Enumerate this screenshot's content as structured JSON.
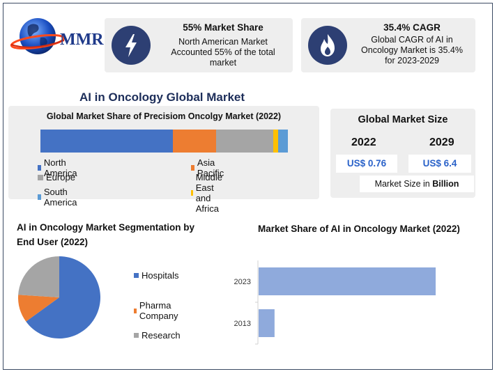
{
  "brand": {
    "logo_text": "MMR"
  },
  "stat_cards": [
    {
      "icon": "lightning-icon",
      "title": "55% Market Share",
      "description": [
        "North American Market",
        "Accounted 55% of the total",
        "market"
      ]
    },
    {
      "icon": "flame-icon",
      "title": "35.4% CAGR",
      "description": [
        "Global CAGR of AI in",
        "Oncology Market is 35.4%",
        "for 2023-2029"
      ]
    }
  ],
  "main_title": "AI in Oncology Global Market",
  "market_size": {
    "title": "Global Market Size",
    "years": [
      "2022",
      "2029"
    ],
    "values": [
      "US$ 0.76",
      "US$ 6.4"
    ],
    "note_prefix": "Market Size in ",
    "note_bold": "Billion"
  },
  "colors": {
    "accent": "#2d3f73",
    "blue": "#4472c4",
    "orange": "#ed7d31",
    "gray": "#a5a5a5",
    "yellow": "#ffc000",
    "light_blue": "#5b9bd5",
    "bar_blue": "#8faadc"
  },
  "chart_data": [
    {
      "type": "bar",
      "orientation": "horizontal-stacked",
      "title": "Global Market Share of Precisiom Oncolgy Market (2022)",
      "series": [
        {
          "name": "North America",
          "value": 55,
          "color": "#4472c4"
        },
        {
          "name": "Asia Pacific",
          "value": 18,
          "color": "#ed7d31"
        },
        {
          "name": "Europe",
          "value": 24,
          "color": "#a5a5a5"
        },
        {
          "name": "Middle East and Africa",
          "value": 2,
          "color": "#ffc000"
        },
        {
          "name": "South America",
          "value": 4,
          "color": "#5b9bd5"
        }
      ],
      "legend_placement": "bottom"
    },
    {
      "type": "pie",
      "title": "AI in Oncology Market Segmentation by End User (2022)",
      "slices": [
        {
          "label": "Hospitals",
          "value": 65,
          "color": "#4472c4"
        },
        {
          "label": "Pharma Company",
          "value": 11,
          "color": "#ed7d31"
        },
        {
          "label": "Research",
          "value": 24,
          "color": "#a5a5a5"
        }
      ],
      "legend_placement": "right"
    },
    {
      "type": "bar",
      "orientation": "horizontal",
      "title": "Market Share of AI in Oncology Market (2022)",
      "categories": [
        "2023",
        "2013"
      ],
      "values": [
        100,
        9
      ],
      "color": "#8faadc"
    }
  ]
}
